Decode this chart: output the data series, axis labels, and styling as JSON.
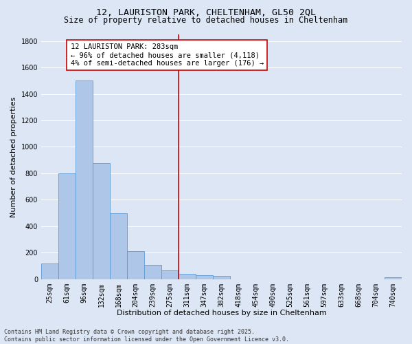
{
  "title_line1": "12, LAURISTON PARK, CHELTENHAM, GL50 2QL",
  "title_line2": "Size of property relative to detached houses in Cheltenham",
  "xlabel": "Distribution of detached houses by size in Cheltenham",
  "ylabel": "Number of detached properties",
  "categories": [
    "25sqm",
    "61sqm",
    "96sqm",
    "132sqm",
    "168sqm",
    "204sqm",
    "239sqm",
    "275sqm",
    "311sqm",
    "347sqm",
    "382sqm",
    "418sqm",
    "454sqm",
    "490sqm",
    "525sqm",
    "561sqm",
    "597sqm",
    "633sqm",
    "668sqm",
    "704sqm",
    "740sqm"
  ],
  "values": [
    120,
    800,
    1500,
    880,
    500,
    210,
    110,
    65,
    40,
    30,
    25,
    0,
    0,
    0,
    0,
    0,
    0,
    0,
    0,
    0,
    15
  ],
  "bar_color": "#aec6e8",
  "bar_edge_color": "#5b9bd5",
  "vline_x": 7.5,
  "vline_color": "#cc0000",
  "annotation_text": "12 LAURISTON PARK: 283sqm\n← 96% of detached houses are smaller (4,118)\n4% of semi-detached houses are larger (176) →",
  "annotation_box_color": "#ffffff",
  "annotation_box_edge": "#cc0000",
  "ylim": [
    0,
    1850
  ],
  "yticks": [
    0,
    200,
    400,
    600,
    800,
    1000,
    1200,
    1400,
    1600,
    1800
  ],
  "background_color": "#dce6f5",
  "grid_color": "#ffffff",
  "footnote": "Contains HM Land Registry data © Crown copyright and database right 2025.\nContains public sector information licensed under the Open Government Licence v3.0.",
  "title_fontsize": 9.5,
  "subtitle_fontsize": 8.5,
  "axis_label_fontsize": 8,
  "tick_fontsize": 7,
  "annotation_fontsize": 7.5,
  "footnote_fontsize": 6
}
